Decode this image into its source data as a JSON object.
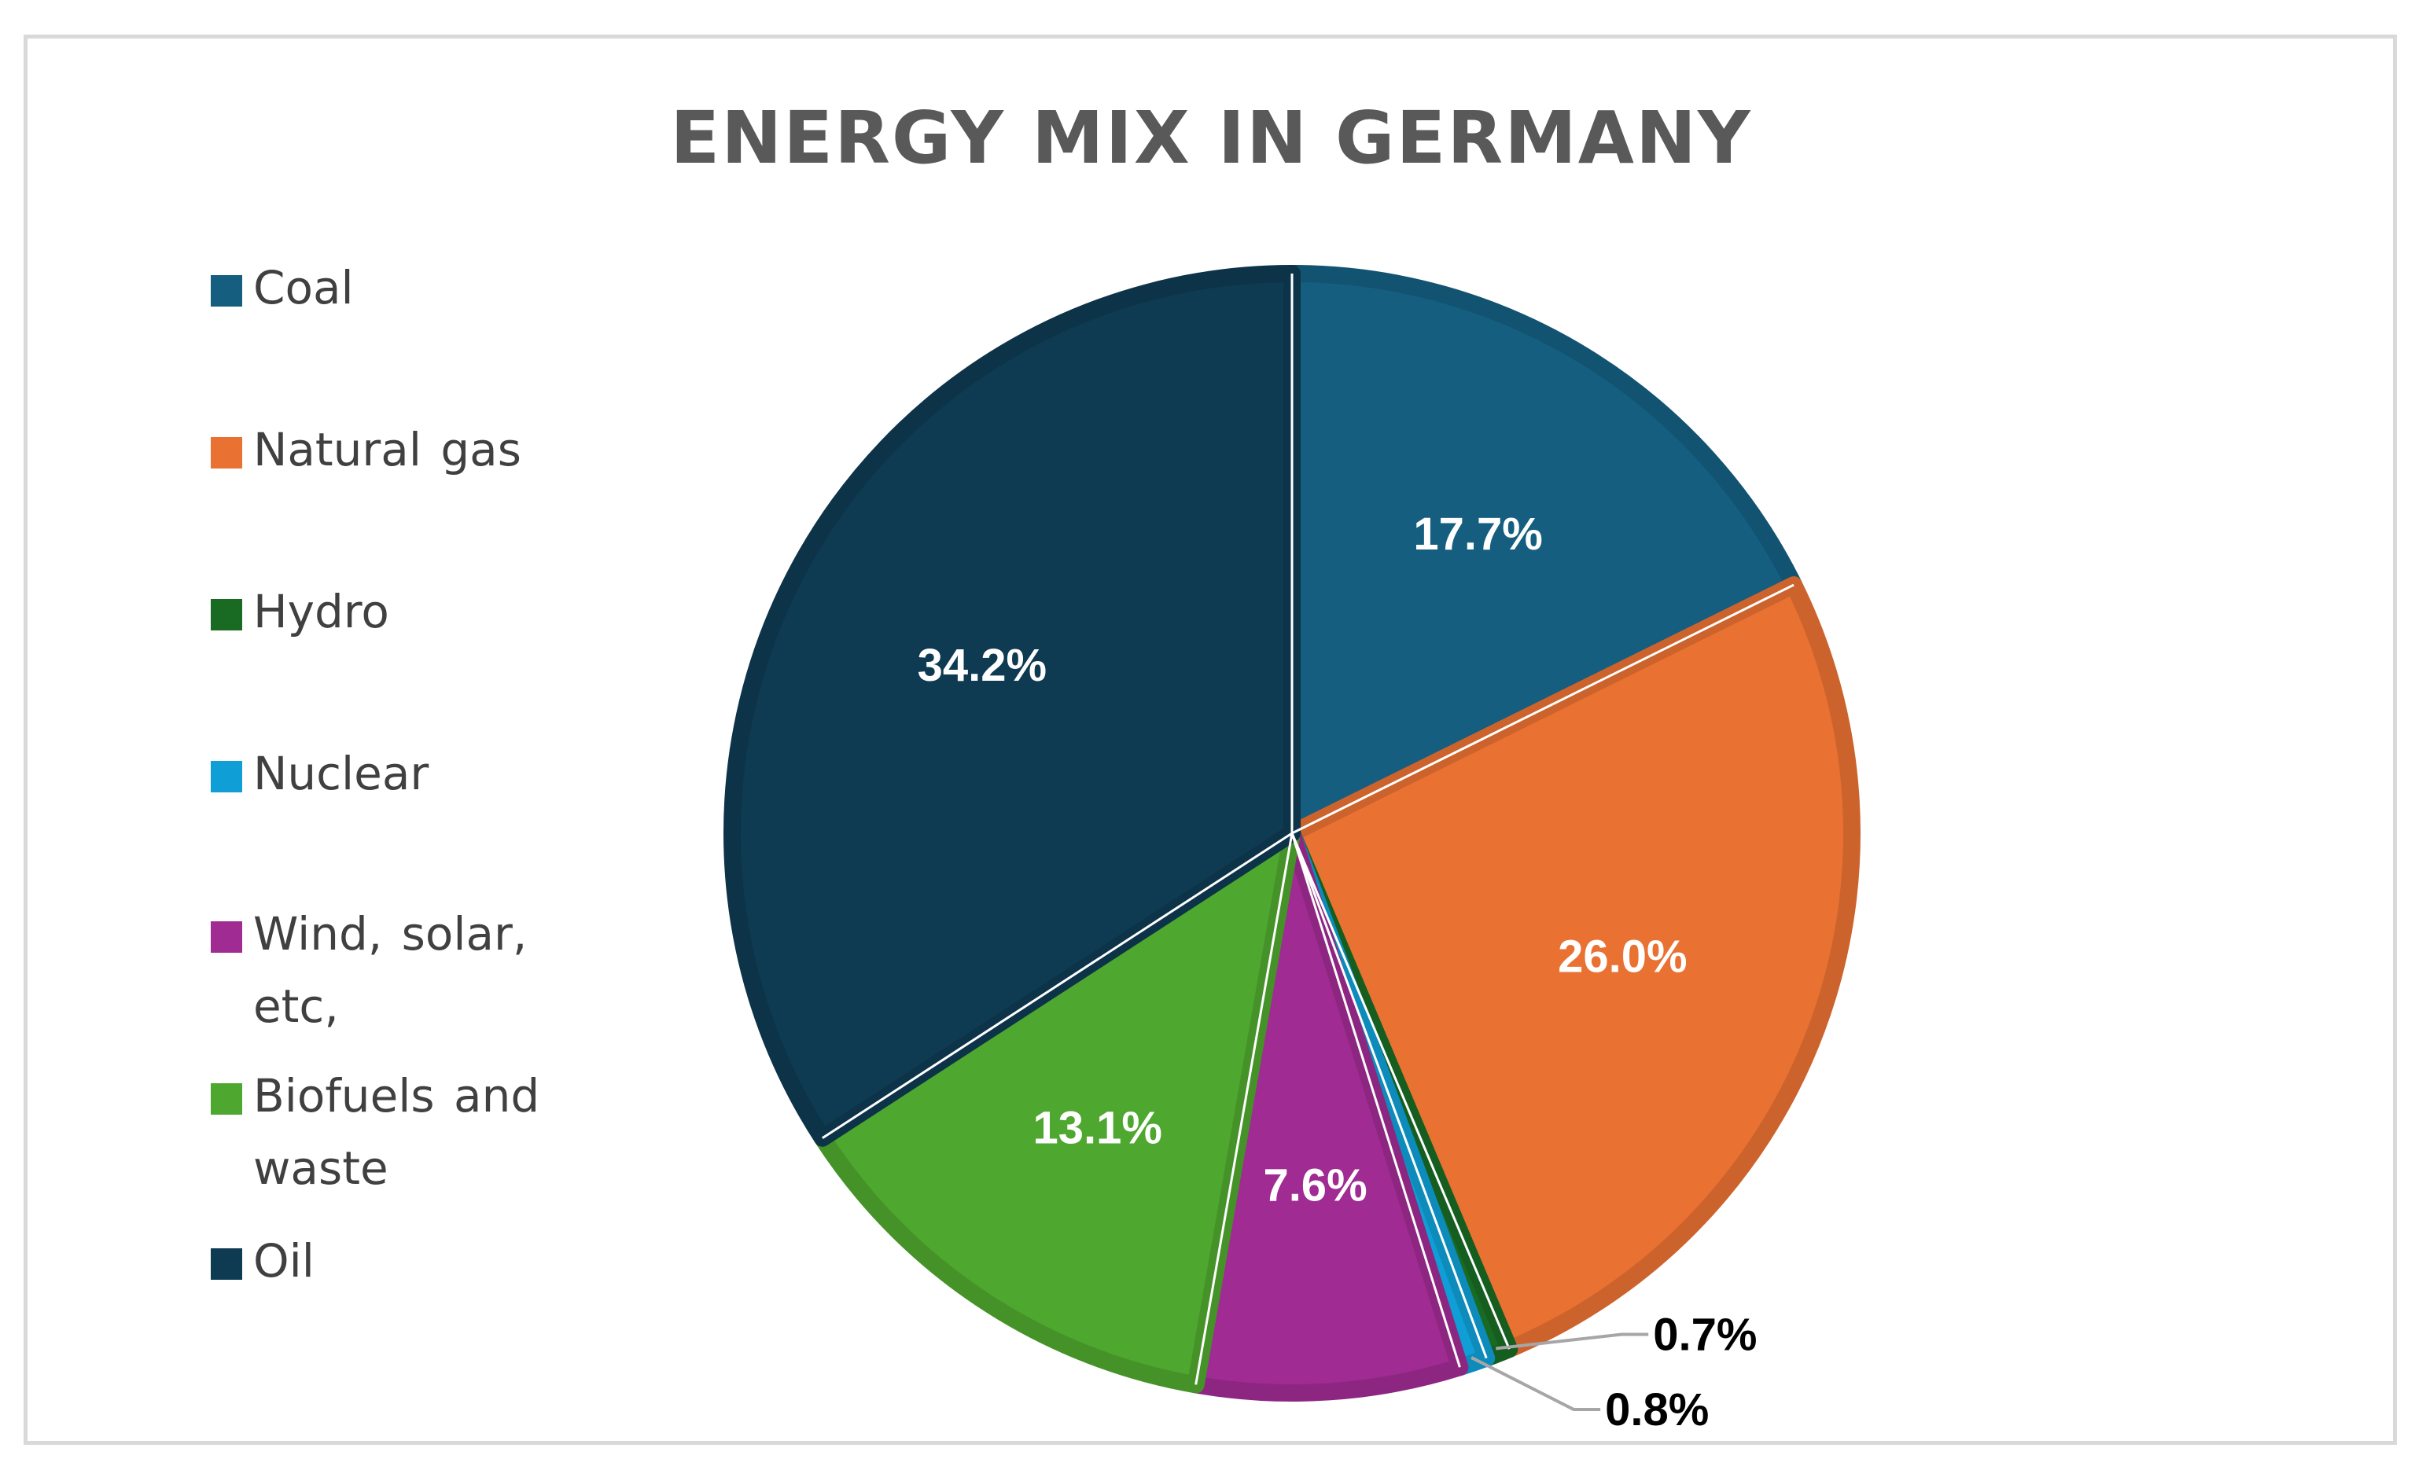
{
  "chart_data": {
    "type": "pie",
    "title": "ENERGY MIX IN GERMANY",
    "legend_position": "left",
    "slices": [
      {
        "label": "Coal",
        "value": 17.7,
        "value_label": "17.7%",
        "color": "#155e80"
      },
      {
        "label": "Natural gas",
        "value": 26.0,
        "value_label": "26.0%",
        "color": "#e97132"
      },
      {
        "label": "Hydro",
        "value": 0.7,
        "value_label": "0.7%",
        "color": "#196b24"
      },
      {
        "label": "Nuclear",
        "value": 0.8,
        "value_label": "0.8%",
        "color": "#0f9ed5"
      },
      {
        "label": "Wind, solar, etc,",
        "value": 7.6,
        "value_label": "7.6%",
        "color": "#a02b93"
      },
      {
        "label": "Biofuels and waste",
        "value": 13.1,
        "value_label": "13.1%",
        "color": "#4ea72e"
      },
      {
        "label": "Oil",
        "value": 34.2,
        "value_label": "34.2%",
        "color": "#0e3a52"
      }
    ]
  }
}
